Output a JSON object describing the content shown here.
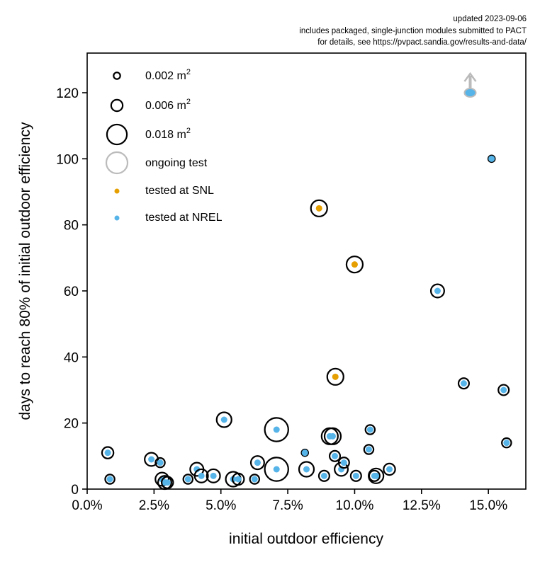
{
  "chart_data": {
    "type": "scatter",
    "title": "",
    "annotations": [
      "updated 2023-09-06",
      "includes packaged, single-junction modules submitted to PACT",
      "for details, see https://pvpact.sandia.gov/results-and-data/"
    ],
    "xlabel": "initial outdoor efficiency",
    "ylabel": "days to reach 80% of initial outdoor efficiency",
    "xlim": [
      0.0,
      16.4
    ],
    "ylim": [
      0,
      132
    ],
    "x_unit": "percent",
    "xticks": [
      0.0,
      2.5,
      5.0,
      7.5,
      10.0,
      12.5,
      15.0
    ],
    "xtick_labels": [
      "0.0%",
      "2.5%",
      "5.0%",
      "7.5%",
      "10.0%",
      "12.5%",
      "15.0%"
    ],
    "yticks": [
      0,
      20,
      40,
      60,
      80,
      100,
      120
    ],
    "ytick_labels": [
      "0",
      "20",
      "40",
      "60",
      "80",
      "100",
      "120"
    ],
    "grid": false,
    "legend_position": "top-left",
    "legend": [
      {
        "label": "0.002 m",
        "sup": "2",
        "kind": "size",
        "area_m2": 0.002
      },
      {
        "label": "0.006 m",
        "sup": "2",
        "kind": "size",
        "area_m2": 0.006
      },
      {
        "label": "0.018 m",
        "sup": "2",
        "kind": "size",
        "area_m2": 0.018
      },
      {
        "label": "ongoing test",
        "kind": "ongoing"
      },
      {
        "label": "tested at SNL",
        "kind": "lab",
        "color": "#E69F00"
      },
      {
        "label": "tested at NREL",
        "kind": "lab",
        "color": "#56B4E9"
      }
    ],
    "colors": {
      "SNL": "#E69F00",
      "NREL": "#56B4E9",
      "ring": "#000000",
      "ongoing_ring": "#bbbbbb"
    },
    "series": [
      {
        "name": "modules",
        "points": [
          {
            "x": 0.77,
            "y": 11,
            "area_m2": 0.006,
            "lab": "NREL"
          },
          {
            "x": 0.85,
            "y": 3,
            "area_m2": 0.004,
            "lab": "NREL"
          },
          {
            "x": 2.4,
            "y": 9,
            "area_m2": 0.008,
            "lab": "NREL"
          },
          {
            "x": 2.73,
            "y": 8,
            "area_m2": 0.004,
            "lab": "NREL"
          },
          {
            "x": 2.8,
            "y": 3,
            "area_m2": 0.008,
            "lab": "NREL"
          },
          {
            "x": 2.9,
            "y": 2,
            "area_m2": 0.008,
            "lab": "NREL"
          },
          {
            "x": 3.0,
            "y": 2,
            "area_m2": 0.006,
            "lab": "NREL"
          },
          {
            "x": 3.77,
            "y": 3,
            "area_m2": 0.004,
            "lab": "NREL"
          },
          {
            "x": 4.1,
            "y": 6,
            "area_m2": 0.008,
            "lab": "NREL"
          },
          {
            "x": 4.27,
            "y": 4,
            "area_m2": 0.008,
            "lab": "NREL"
          },
          {
            "x": 4.72,
            "y": 4,
            "area_m2": 0.008,
            "lab": "NREL"
          },
          {
            "x": 5.12,
            "y": 21,
            "area_m2": 0.01,
            "lab": "NREL"
          },
          {
            "x": 5.46,
            "y": 3,
            "area_m2": 0.01,
            "lab": "NREL"
          },
          {
            "x": 5.65,
            "y": 3,
            "area_m2": 0.006,
            "lab": "NREL"
          },
          {
            "x": 6.26,
            "y": 3,
            "area_m2": 0.004,
            "lab": "NREL"
          },
          {
            "x": 6.37,
            "y": 8,
            "area_m2": 0.008,
            "lab": "NREL"
          },
          {
            "x": 7.08,
            "y": 18,
            "area_m2": 0.025,
            "lab": "NREL"
          },
          {
            "x": 7.08,
            "y": 6,
            "area_m2": 0.025,
            "lab": "NREL"
          },
          {
            "x": 8.14,
            "y": 11,
            "area_m2": 0.002,
            "lab": "NREL"
          },
          {
            "x": 8.2,
            "y": 6,
            "area_m2": 0.01,
            "lab": "NREL"
          },
          {
            "x": 8.67,
            "y": 85,
            "area_m2": 0.012,
            "lab": "SNL"
          },
          {
            "x": 8.86,
            "y": 4,
            "area_m2": 0.005,
            "lab": "NREL"
          },
          {
            "x": 9.07,
            "y": 16,
            "area_m2": 0.012,
            "lab": "NREL"
          },
          {
            "x": 9.18,
            "y": 16,
            "area_m2": 0.012,
            "lab": "NREL"
          },
          {
            "x": 9.28,
            "y": 34,
            "area_m2": 0.012,
            "lab": "SNL"
          },
          {
            "x": 9.26,
            "y": 10,
            "area_m2": 0.005,
            "lab": "NREL"
          },
          {
            "x": 9.5,
            "y": 6,
            "area_m2": 0.008,
            "lab": "NREL"
          },
          {
            "x": 9.6,
            "y": 8,
            "area_m2": 0.005,
            "lab": "NREL"
          },
          {
            "x": 10.0,
            "y": 68,
            "area_m2": 0.012,
            "lab": "SNL"
          },
          {
            "x": 10.05,
            "y": 4,
            "area_m2": 0.005,
            "lab": "NREL"
          },
          {
            "x": 10.53,
            "y": 12,
            "area_m2": 0.004,
            "lab": "NREL"
          },
          {
            "x": 10.58,
            "y": 18,
            "area_m2": 0.004,
            "lab": "NREL"
          },
          {
            "x": 10.74,
            "y": 4,
            "area_m2": 0.005,
            "lab": "NREL"
          },
          {
            "x": 10.8,
            "y": 4,
            "area_m2": 0.01,
            "lab": "NREL"
          },
          {
            "x": 11.3,
            "y": 6,
            "area_m2": 0.006,
            "lab": "NREL"
          },
          {
            "x": 13.1,
            "y": 60,
            "area_m2": 0.008,
            "lab": "NREL"
          },
          {
            "x": 14.08,
            "y": 32,
            "area_m2": 0.005,
            "lab": "NREL"
          },
          {
            "x": 14.32,
            "y": 120,
            "area_m2": 0.004,
            "lab": "NREL",
            "ongoing": true
          },
          {
            "x": 15.12,
            "y": 100,
            "area_m2": 0.002,
            "lab": "NREL"
          },
          {
            "x": 15.57,
            "y": 30,
            "area_m2": 0.005,
            "lab": "NREL"
          },
          {
            "x": 15.68,
            "y": 14,
            "area_m2": 0.004,
            "lab": "NREL"
          }
        ]
      }
    ]
  }
}
